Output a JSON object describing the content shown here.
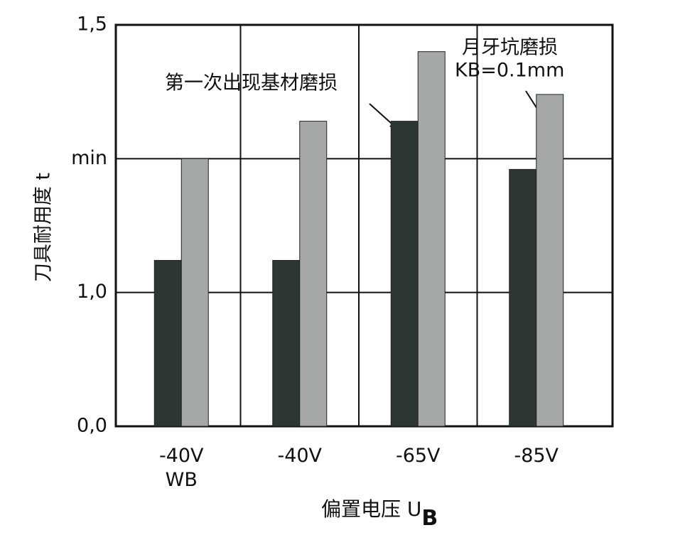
{
  "chart_data": {
    "type": "bar",
    "y_label": "刀具耐用度 t",
    "x_label": "偏置电压 U",
    "x_label_subscript": "B",
    "categories": [
      "-40V\nWB",
      "-40V",
      "-65V",
      "-85V"
    ],
    "series": [
      {
        "color": "#2e3634",
        "values": [
          1.06,
          1.06,
          1.32,
          1.23
        ]
      },
      {
        "color": "#a5a8a7",
        "values": [
          1.25,
          1.32,
          1.45,
          1.37
        ]
      }
    ],
    "ylim": [
      0,
      1.5
    ],
    "yticks": [
      {
        "value": 0,
        "label": "0,0"
      },
      {
        "value": 1,
        "label": "1,0"
      },
      {
        "value": 1.25,
        "label": "min"
      },
      {
        "value": 1.5,
        "label": "1,5"
      }
    ],
    "grid": true,
    "annotations": [
      {
        "text": "第一次出现基材磨损",
        "series": 0
      },
      {
        "text": "月牙坑磨损",
        "series": 1
      },
      {
        "text": "KB=0.1mm",
        "series": 1
      }
    ]
  }
}
